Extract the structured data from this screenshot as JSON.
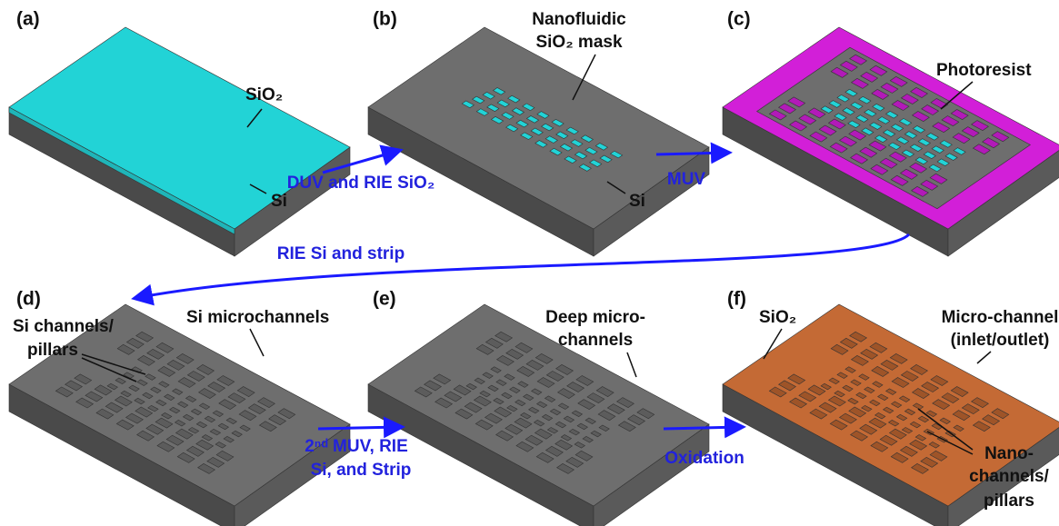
{
  "panels": [
    "(a)",
    "(b)",
    "(c)",
    "(d)",
    "(e)",
    "(f)"
  ],
  "annotations": {
    "a_sio2": "SiO₂",
    "a_si": "Si",
    "b_mask_1": "Nanofluidic",
    "b_mask_2": "SiO₂ mask",
    "b_si": "Si",
    "c_photoresist": "Photoresist",
    "d_channels_1": "Si channels/",
    "d_channels_2": "pillars",
    "d_micro": "Si microchannels",
    "e_deep_1": "Deep micro-",
    "e_deep_2": "channels",
    "f_sio2": "SiO₂",
    "f_micro_1": "Micro-channel",
    "f_micro_2": "(inlet/outlet)",
    "f_nano_1": "Nano-",
    "f_nano_2": "channels/",
    "f_nano_3": "pillars"
  },
  "steps": {
    "a_to_b": "DUV and RIE SiO₂",
    "b_to_c": "MUV",
    "c_to_d": "RIE Si and strip",
    "d_to_e_1": "2ⁿᵈ MUV, RIE",
    "d_to_e_2": "Si, and Strip",
    "e_to_f": "Oxidation"
  }
}
